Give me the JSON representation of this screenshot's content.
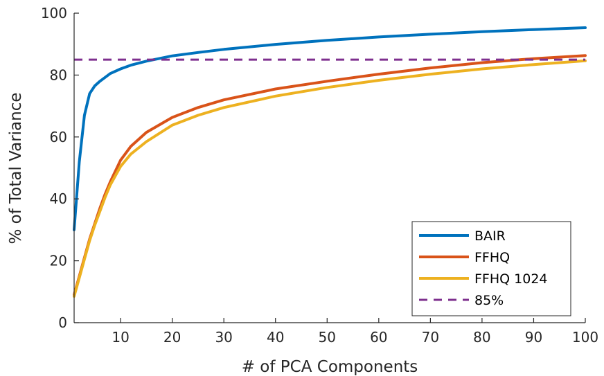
{
  "chart_data": {
    "type": "line",
    "xlabel": "# of PCA Components",
    "ylabel": "% of Total Variance",
    "xlim": [
      1,
      100
    ],
    "ylim": [
      0,
      100
    ],
    "x_ticks": [
      10,
      20,
      30,
      40,
      50,
      60,
      70,
      80,
      90,
      100
    ],
    "y_ticks": [
      0,
      20,
      40,
      60,
      80,
      100
    ],
    "grid": false,
    "legend_position": "bottom-right",
    "series": [
      {
        "name": "BAIR",
        "color": "#0072BD",
        "style": "solid",
        "x": [
          1,
          2,
          3,
          4,
          5,
          6,
          8,
          10,
          12,
          15,
          20,
          25,
          30,
          40,
          50,
          60,
          70,
          80,
          90,
          100
        ],
        "y": [
          30,
          52,
          67,
          74,
          76.5,
          78,
          80.5,
          82,
          83.2,
          84.5,
          86.2,
          87.3,
          88.3,
          89.9,
          91.2,
          92.3,
          93.2,
          94,
          94.7,
          95.3
        ]
      },
      {
        "name": "FFHQ",
        "color": "#D95319",
        "style": "solid",
        "x": [
          1,
          2,
          3,
          4,
          5,
          6,
          7,
          8,
          10,
          12,
          15,
          20,
          25,
          30,
          40,
          50,
          60,
          70,
          80,
          90,
          100
        ],
        "y": [
          9,
          15,
          21,
          27,
          32,
          37,
          41.5,
          45.5,
          52.5,
          57,
          61.5,
          66.3,
          69.5,
          72,
          75.5,
          78,
          80.3,
          82.3,
          84,
          85.3,
          86.3
        ]
      },
      {
        "name": "FFHQ 1024",
        "color": "#EDB120",
        "style": "solid",
        "x": [
          1,
          2,
          3,
          4,
          5,
          6,
          7,
          8,
          10,
          12,
          15,
          20,
          25,
          30,
          40,
          50,
          60,
          70,
          80,
          90,
          100
        ],
        "y": [
          8.5,
          14.5,
          20.5,
          26.5,
          31.5,
          36,
          40.5,
          44.5,
          50.5,
          54.5,
          58.5,
          63.8,
          67,
          69.5,
          73.2,
          76,
          78.3,
          80.3,
          82,
          83.4,
          84.6
        ]
      },
      {
        "name": "85%",
        "color": "#7E2F8E",
        "style": "dashed",
        "x": [
          1,
          100
        ],
        "y": [
          85,
          85
        ]
      }
    ]
  }
}
